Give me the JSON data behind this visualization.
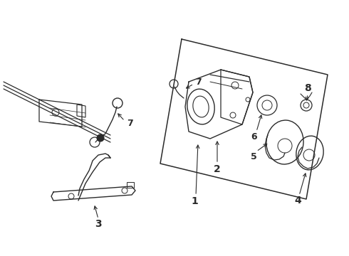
{
  "background_color": "#ffffff",
  "line_color": "#2a2a2a",
  "figure_width": 4.9,
  "figure_height": 3.6,
  "dpi": 100,
  "font_size": 9
}
